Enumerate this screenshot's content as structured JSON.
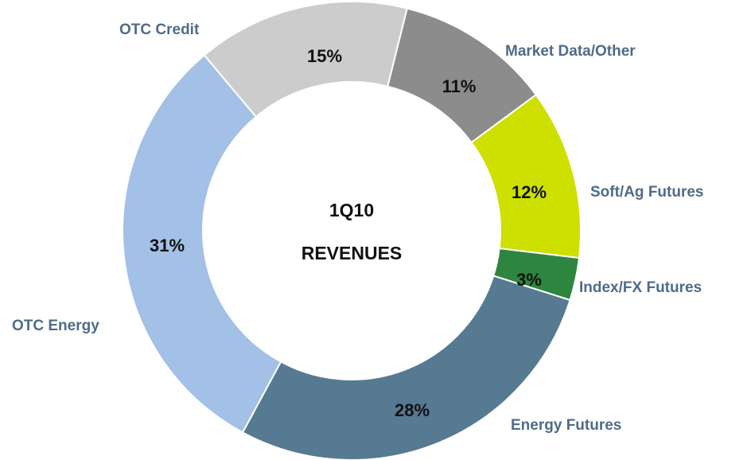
{
  "chart_data": {
    "type": "donut",
    "title": [
      "1Q10",
      "REVENUES"
    ],
    "categories": [
      "Market Data/Other",
      "Soft/Ag Futures",
      "Index/FX Futures",
      "Energy Futures",
      "OTC Energy",
      "OTC Credit"
    ],
    "values": [
      11,
      12,
      3,
      28,
      31,
      15
    ],
    "value_labels": [
      "11%",
      "12%",
      "3%",
      "28%",
      "31%",
      "15%"
    ],
    "colors": [
      "#8c8c8c",
      "#cde000",
      "#2e8540",
      "#557a92",
      "#a3c0e6",
      "#cccccc"
    ]
  }
}
